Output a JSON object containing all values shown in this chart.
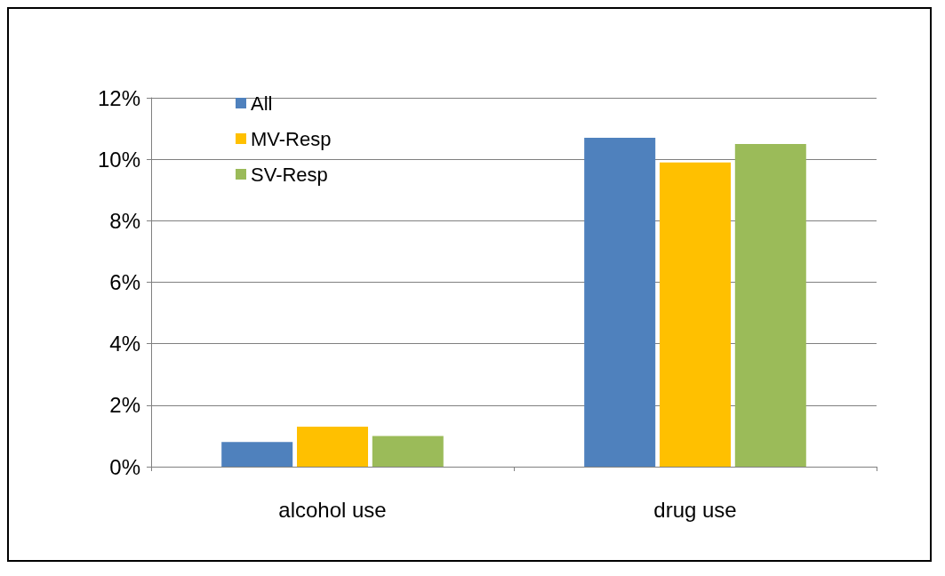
{
  "chart_data": {
    "type": "bar",
    "categories": [
      "alcohol use",
      "drug use"
    ],
    "series": [
      {
        "name": "All",
        "color": "#4f81bd",
        "values": [
          0.8,
          10.7
        ]
      },
      {
        "name": "MV-Resp",
        "color": "#ffc000",
        "values": [
          1.3,
          9.9
        ]
      },
      {
        "name": "SV-Resp",
        "color": "#9bbb59",
        "values": [
          1.0,
          10.5
        ]
      }
    ],
    "ylim": [
      0,
      12
    ],
    "yticks": [
      {
        "value": 0,
        "label": "0%"
      },
      {
        "value": 2,
        "label": "2%"
      },
      {
        "value": 4,
        "label": "4%"
      },
      {
        "value": 6,
        "label": "6%"
      },
      {
        "value": 8,
        "label": "8%"
      },
      {
        "value": 10,
        "label": "10%"
      },
      {
        "value": 12,
        "label": "12%"
      }
    ],
    "grid": "y",
    "legend": "top left"
  }
}
